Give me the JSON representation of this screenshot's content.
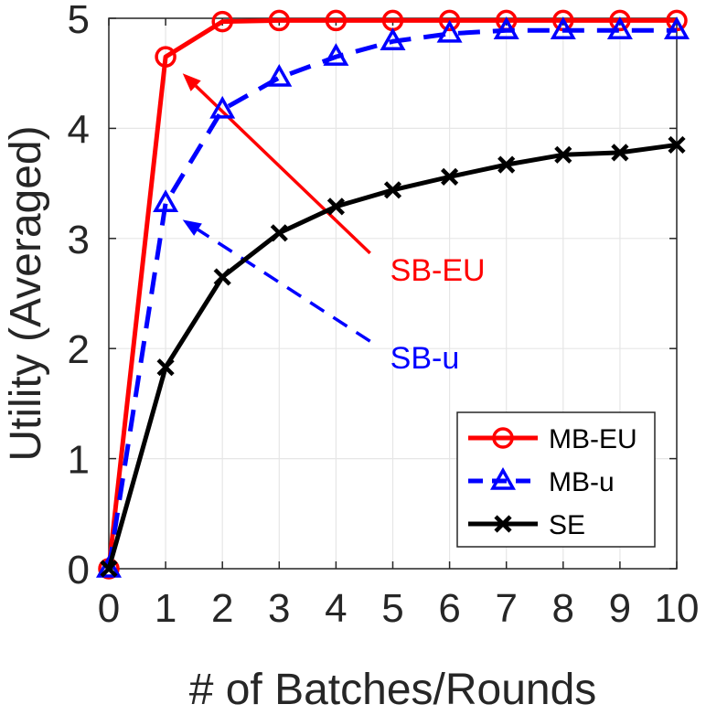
{
  "chart_data": {
    "type": "line",
    "title": "",
    "xlabel": "# of Batches/Rounds",
    "ylabel": "Utility (Averaged)",
    "xlim": [
      0,
      10
    ],
    "ylim": [
      0,
      5
    ],
    "x": [
      0,
      1,
      2,
      3,
      4,
      5,
      6,
      7,
      8,
      9,
      10
    ],
    "xticks": [
      "0",
      "1",
      "2",
      "3",
      "4",
      "5",
      "6",
      "7",
      "8",
      "9",
      "10"
    ],
    "yticks": [
      "0",
      "1",
      "2",
      "3",
      "4",
      "5"
    ],
    "grid": true,
    "legend_position": "bottom-right",
    "series": [
      {
        "name": "MB-EU",
        "color": "#ff0000",
        "marker": "circle",
        "line": "solid",
        "values": [
          0,
          4.65,
          4.97,
          4.98,
          4.98,
          4.98,
          4.98,
          4.98,
          4.98,
          4.98,
          4.98
        ]
      },
      {
        "name": "MB-u",
        "color": "#0000ff",
        "marker": "triangle",
        "line": "dashed",
        "values": [
          0,
          3.32,
          4.17,
          4.46,
          4.65,
          4.79,
          4.86,
          4.89,
          4.89,
          4.89,
          4.89
        ]
      },
      {
        "name": "SE",
        "color": "#000000",
        "marker": "x",
        "line": "solid",
        "values": [
          0,
          1.83,
          2.65,
          3.05,
          3.29,
          3.44,
          3.56,
          3.67,
          3.76,
          3.78,
          3.85
        ]
      }
    ],
    "annotations": [
      {
        "text": "SB-EU",
        "color": "#ff0000",
        "line": "solid",
        "target": [
          1.3,
          4.5
        ],
        "label_at": [
          4.6,
          2.8
        ]
      },
      {
        "text": "SB-u",
        "color": "#0000ff",
        "line": "dashed",
        "target": [
          1.3,
          3.17
        ],
        "label_at": [
          4.6,
          2.0
        ]
      }
    ]
  }
}
